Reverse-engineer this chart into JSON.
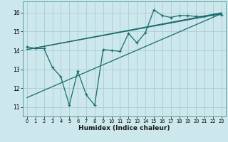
{
  "xlabel": "Humidex (Indice chaleur)",
  "background_color": "#cce8ec",
  "grid_color": "#aaccd4",
  "line_color": "#1a6b6b",
  "xlim": [
    -0.5,
    23.5
  ],
  "ylim": [
    10.5,
    16.6
  ],
  "yticks": [
    11,
    12,
    13,
    14,
    15,
    16
  ],
  "xticks": [
    0,
    1,
    2,
    3,
    4,
    5,
    6,
    7,
    8,
    9,
    10,
    11,
    12,
    13,
    14,
    15,
    16,
    17,
    18,
    19,
    20,
    21,
    22,
    23
  ],
  "scatter_x": [
    0,
    1,
    2,
    3,
    4,
    5,
    6,
    7,
    8,
    9,
    10,
    11,
    12,
    13,
    14,
    15,
    16,
    17,
    18,
    19,
    20,
    21,
    22,
    23
  ],
  "scatter_y": [
    14.2,
    14.1,
    14.1,
    13.1,
    12.6,
    11.1,
    12.9,
    11.65,
    11.1,
    14.05,
    14.0,
    13.95,
    14.9,
    14.4,
    14.95,
    16.15,
    15.85,
    15.75,
    15.85,
    15.85,
    15.8,
    15.8,
    15.9,
    15.9
  ],
  "reg_line1": {
    "x": [
      0,
      23
    ],
    "y": [
      14.05,
      15.95
    ]
  },
  "reg_line2": {
    "x": [
      0,
      23
    ],
    "y": [
      14.05,
      16.0
    ]
  },
  "reg_line3": {
    "x": [
      0,
      23
    ],
    "y": [
      11.5,
      15.95
    ]
  }
}
